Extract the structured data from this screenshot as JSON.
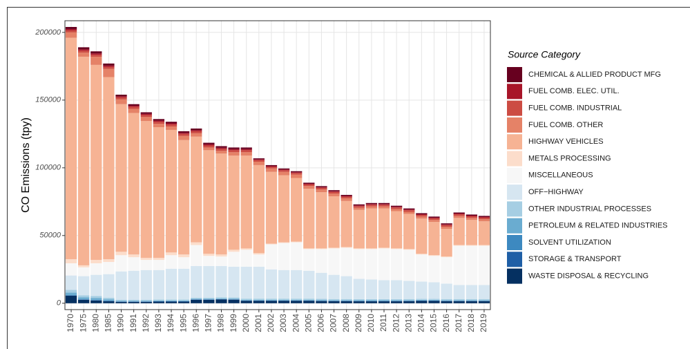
{
  "chart_data": {
    "type": "stacked_bar",
    "y_label": "CO Emissions (tpy)",
    "legend_title": "Source Category",
    "legend_position": "right",
    "grid": true,
    "ylim": [
      -4700,
      208600
    ],
    "yticks": [
      0,
      50000,
      100000,
      150000,
      200000
    ],
    "categories": [
      "1970",
      "1975",
      "1980",
      "1985",
      "1990",
      "1991",
      "1992",
      "1993",
      "1994",
      "1995",
      "1996",
      "1997",
      "1998",
      "1999",
      "2000",
      "2001",
      "2002",
      "2003",
      "2004",
      "2005",
      "2006",
      "2007",
      "2008",
      "2009",
      "2010",
      "2011",
      "2012",
      "2013",
      "2014",
      "2015",
      "2016",
      "2017",
      "2018",
      "2019"
    ],
    "series": [
      {
        "name": "CHEMICAL & ALLIED PRODUCT MFG",
        "color": "#67001F",
        "values": [
          1500,
          1500,
          1500,
          1500,
          1200,
          1200,
          1200,
          1200,
          1200,
          1200,
          1200,
          1200,
          1200,
          1200,
          1200,
          800,
          800,
          800,
          800,
          800,
          800,
          800,
          800,
          800,
          800,
          800,
          800,
          800,
          800,
          800,
          800,
          800,
          800,
          800
        ]
      },
      {
        "name": "FUEL COMB. ELEC. UTIL.",
        "color": "#A81529",
        "values": [
          1000,
          1000,
          1000,
          1000,
          800,
          800,
          800,
          800,
          800,
          800,
          800,
          800,
          800,
          800,
          800,
          500,
          500,
          500,
          500,
          500,
          500,
          500,
          500,
          500,
          500,
          500,
          500,
          500,
          500,
          500,
          500,
          500,
          500,
          500
        ]
      },
      {
        "name": "FUEL COMB. INDUSTRIAL",
        "color": "#CC4C43",
        "values": [
          1500,
          1500,
          1500,
          1500,
          1500,
          1500,
          1500,
          1500,
          1500,
          1500,
          1500,
          1500,
          1500,
          1500,
          1500,
          1200,
          1200,
          1200,
          1200,
          1200,
          1200,
          1200,
          1200,
          1200,
          1200,
          1200,
          1200,
          1200,
          1200,
          1200,
          1200,
          1200,
          1200,
          1200
        ]
      },
      {
        "name": "FUEL COMB. OTHER",
        "color": "#E58267",
        "values": [
          4000,
          3000,
          6000,
          6000,
          3500,
          3000,
          3000,
          2500,
          2500,
          3000,
          2500,
          2000,
          2000,
          2500,
          2500,
          2500,
          2500,
          2500,
          2500,
          2000,
          2000,
          2000,
          2000,
          1500,
          1500,
          1500,
          1500,
          1500,
          1500,
          1500,
          1500,
          1500,
          1500,
          1500
        ]
      },
      {
        "name": "HIGHWAY VEHICLES",
        "color": "#F6B394",
        "values": [
          163500,
          154000,
          144000,
          134500,
          109000,
          104500,
          101000,
          96500,
          90500,
          84500,
          78000,
          76500,
          74500,
          69500,
          68500,
          65000,
          53000,
          49500,
          47000,
          44000,
          41500,
          38000,
          34000,
          28500,
          29500,
          29000,
          27500,
          26000,
          26000,
          24500,
          20500,
          20000,
          18500,
          17500
        ]
      },
      {
        "name": "METALS PROCESSING",
        "color": "#FCDDCB",
        "values": [
          3000,
          1500,
          2500,
          2000,
          2500,
          2000,
          1500,
          1500,
          2000,
          2000,
          2000,
          1500,
          1500,
          1500,
          1000,
          1000,
          500,
          500,
          500,
          500,
          500,
          500,
          500,
          500,
          500,
          500,
          500,
          500,
          500,
          500,
          500,
          500,
          500,
          500
        ]
      },
      {
        "name": "MISCELLANEOUS",
        "color": "#F7F7F7",
        "values": [
          9000,
          6500,
          8500,
          9000,
          12000,
          10000,
          7500,
          7500,
          10000,
          8500,
          15500,
          7500,
          7000,
          11000,
          12500,
          9000,
          18500,
          20000,
          20500,
          16000,
          17500,
          19500,
          21000,
          22000,
          22500,
          23500,
          23000,
          23000,
          20000,
          19500,
          19500,
          29000,
          29000,
          29000
        ]
      },
      {
        "name": "OFF−HIGHWAY",
        "color": "#D6E6F1",
        "values": [
          10600,
          14100,
          15600,
          17400,
          20900,
          21400,
          21900,
          21700,
          22700,
          22700,
          23400,
          23400,
          23100,
          22800,
          23600,
          23600,
          21600,
          21100,
          21100,
          20600,
          19300,
          17900,
          16900,
          15000,
          14500,
          14000,
          14000,
          13400,
          12700,
          12200,
          11400,
          10400,
          10400,
          10400
        ]
      },
      {
        "name": "OTHER INDUSTRIAL PROCESSES",
        "color": "#A6CEE3",
        "values": [
          2000,
          1500,
          1500,
          1200,
          800,
          800,
          800,
          800,
          800,
          800,
          800,
          800,
          800,
          800,
          800,
          800,
          800,
          800,
          800,
          800,
          800,
          800,
          800,
          800,
          800,
          800,
          800,
          800,
          800,
          800,
          800,
          800,
          800,
          800
        ]
      },
      {
        "name": "PETROLEUM & RELATED INDUSTRIES",
        "color": "#6AACD0",
        "values": [
          2000,
          1500,
          1500,
          1000,
          500,
          500,
          500,
          500,
          500,
          500,
          500,
          500,
          500,
          500,
          500,
          500,
          500,
          500,
          500,
          500,
          500,
          500,
          500,
          500,
          500,
          500,
          500,
          500,
          500,
          500,
          500,
          500,
          500,
          500
        ]
      },
      {
        "name": "SOLVENT UTILIZATION",
        "color": "#3D89C0",
        "values": [
          100,
          100,
          100,
          100,
          100,
          100,
          100,
          100,
          100,
          100,
          100,
          100,
          100,
          100,
          100,
          100,
          100,
          100,
          100,
          100,
          100,
          100,
          100,
          100,
          100,
          100,
          100,
          100,
          100,
          100,
          100,
          100,
          100,
          100
        ]
      },
      {
        "name": "STORAGE & TRANSPORT",
        "color": "#1F5FA6",
        "values": [
          300,
          300,
          300,
          300,
          200,
          200,
          200,
          200,
          200,
          200,
          200,
          200,
          200,
          200,
          200,
          200,
          200,
          200,
          200,
          200,
          200,
          200,
          200,
          200,
          200,
          200,
          200,
          200,
          200,
          200,
          200,
          200,
          200,
          200
        ]
      },
      {
        "name": "WASTE DISPOSAL & RECYCLING",
        "color": "#053061",
        "values": [
          5500,
          2500,
          2000,
          1500,
          1000,
          1000,
          1000,
          1200,
          1200,
          1200,
          2500,
          2500,
          2800,
          2600,
          1800,
          1800,
          1800,
          1800,
          1800,
          1800,
          1600,
          1500,
          1500,
          1400,
          1400,
          1400,
          1400,
          1500,
          1700,
          1700,
          1500,
          1500,
          1500,
          1500
        ]
      }
    ]
  }
}
